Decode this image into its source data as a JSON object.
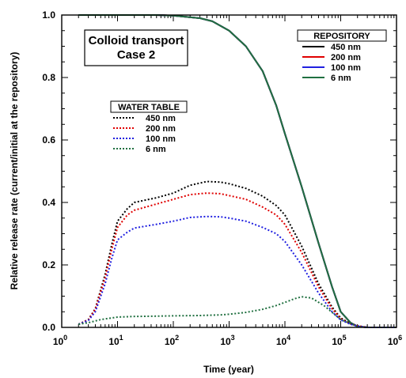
{
  "chart_data": {
    "type": "line",
    "annotation": [
      "Colloid transport",
      "Case 2"
    ],
    "xlabel": "Time (year)",
    "ylabel": "Relative release rate (current/initial at the repository)",
    "x_scale": "log",
    "xlim": [
      1,
      1000000
    ],
    "ylim": [
      0,
      1.0
    ],
    "x_tick_labels": [
      {
        "x": 1,
        "base": "10",
        "exp": "0"
      },
      {
        "x": 10,
        "base": "10",
        "exp": "1"
      },
      {
        "x": 100,
        "base": "10",
        "exp": "2"
      },
      {
        "x": 1000,
        "base": "10",
        "exp": "3"
      },
      {
        "x": 10000,
        "base": "10",
        "exp": "4"
      },
      {
        "x": 100000,
        "base": "10",
        "exp": "5"
      },
      {
        "x": 1000000,
        "base": "10",
        "exp": "6"
      }
    ],
    "y_tick_labels": [
      "0.0",
      "0.2",
      "0.4",
      "0.6",
      "0.8",
      "1.0"
    ],
    "y_ticks": [
      0,
      0.2,
      0.4,
      0.6,
      0.8,
      1.0
    ],
    "legends": [
      {
        "title": "REPOSITORY",
        "line_style": "solid",
        "entries": [
          {
            "label": "450 nm",
            "color": "#000000"
          },
          {
            "label": "200 nm",
            "color": "#e00000"
          },
          {
            "label": "100 nm",
            "color": "#2020e0"
          },
          {
            "label": "6 nm",
            "color": "#207040"
          }
        ]
      },
      {
        "title": "WATER TABLE",
        "line_style": "dotted",
        "entries": [
          {
            "label": "450 nm",
            "color": "#000000"
          },
          {
            "label": "200 nm",
            "color": "#e00000"
          },
          {
            "label": "100 nm",
            "color": "#2020e0"
          },
          {
            "label": "6 nm",
            "color": "#207040"
          }
        ]
      }
    ],
    "series": [
      {
        "group": "repository",
        "size": "450 nm",
        "color": "#000000",
        "style": "solid",
        "x": [
          2,
          5,
          10,
          50,
          100,
          300,
          500,
          1000,
          2000,
          4000,
          7000,
          10000,
          20000,
          40000,
          70000,
          100000,
          150000,
          200000,
          300000,
          1000000
        ],
        "y": [
          1.0,
          1.0,
          1.0,
          1.0,
          0.998,
          0.99,
          0.98,
          0.95,
          0.9,
          0.82,
          0.71,
          0.62,
          0.45,
          0.27,
          0.13,
          0.05,
          0.015,
          0.003,
          0.0,
          0.0
        ]
      },
      {
        "group": "repository",
        "size": "200 nm",
        "color": "#e00000",
        "style": "solid",
        "x": [
          2,
          5,
          10,
          50,
          100,
          300,
          500,
          1000,
          2000,
          4000,
          7000,
          10000,
          20000,
          40000,
          70000,
          100000,
          150000,
          200000,
          300000,
          1000000
        ],
        "y": [
          1.0,
          1.0,
          1.0,
          1.0,
          0.998,
          0.99,
          0.98,
          0.95,
          0.9,
          0.82,
          0.71,
          0.62,
          0.45,
          0.27,
          0.13,
          0.05,
          0.015,
          0.003,
          0.0,
          0.0
        ]
      },
      {
        "group": "repository",
        "size": "100 nm",
        "color": "#2020e0",
        "style": "solid",
        "x": [
          2,
          5,
          10,
          50,
          100,
          300,
          500,
          1000,
          2000,
          4000,
          7000,
          10000,
          20000,
          40000,
          70000,
          100000,
          150000,
          200000,
          300000,
          1000000
        ],
        "y": [
          1.0,
          1.0,
          1.0,
          1.0,
          0.998,
          0.99,
          0.98,
          0.95,
          0.9,
          0.82,
          0.71,
          0.62,
          0.45,
          0.27,
          0.13,
          0.05,
          0.015,
          0.003,
          0.0,
          0.0
        ]
      },
      {
        "group": "repository",
        "size": "6 nm",
        "color": "#207040",
        "style": "solid",
        "x": [
          2,
          5,
          10,
          50,
          100,
          300,
          500,
          1000,
          2000,
          4000,
          7000,
          10000,
          20000,
          40000,
          70000,
          100000,
          150000,
          200000,
          300000,
          1000000
        ],
        "y": [
          1.0,
          1.0,
          1.0,
          1.0,
          0.998,
          0.99,
          0.98,
          0.95,
          0.9,
          0.82,
          0.71,
          0.62,
          0.45,
          0.27,
          0.13,
          0.05,
          0.015,
          0.003,
          0.0,
          0.0
        ]
      },
      {
        "group": "water_table",
        "size": "450 nm",
        "color": "#000000",
        "style": "dotted",
        "x": [
          2,
          3,
          4,
          6,
          8,
          10,
          15,
          20,
          50,
          100,
          200,
          400,
          700,
          1000,
          2000,
          4000,
          7000,
          10000,
          20000,
          40000,
          70000,
          100000,
          150000,
          200000,
          300000,
          1000000
        ],
        "y": [
          0.01,
          0.025,
          0.06,
          0.17,
          0.27,
          0.34,
          0.38,
          0.4,
          0.415,
          0.43,
          0.455,
          0.467,
          0.465,
          0.46,
          0.445,
          0.42,
          0.39,
          0.36,
          0.26,
          0.14,
          0.065,
          0.03,
          0.012,
          0.005,
          0.0,
          0.0
        ]
      },
      {
        "group": "water_table",
        "size": "200 nm",
        "color": "#e00000",
        "style": "dotted",
        "x": [
          2,
          3,
          4,
          6,
          8,
          10,
          15,
          20,
          50,
          100,
          200,
          400,
          700,
          1000,
          2000,
          4000,
          7000,
          10000,
          20000,
          40000,
          70000,
          100000,
          150000,
          200000,
          300000,
          1000000
        ],
        "y": [
          0.01,
          0.024,
          0.058,
          0.16,
          0.255,
          0.32,
          0.36,
          0.375,
          0.395,
          0.41,
          0.425,
          0.43,
          0.428,
          0.422,
          0.41,
          0.385,
          0.36,
          0.33,
          0.24,
          0.13,
          0.06,
          0.028,
          0.011,
          0.005,
          0.0,
          0.0
        ]
      },
      {
        "group": "water_table",
        "size": "100 nm",
        "color": "#2020e0",
        "style": "dotted",
        "x": [
          2,
          3,
          4,
          6,
          8,
          10,
          15,
          20,
          50,
          100,
          200,
          400,
          700,
          1000,
          2000,
          4000,
          7000,
          10000,
          20000,
          40000,
          70000,
          100000,
          150000,
          200000,
          300000,
          1000000
        ],
        "y": [
          0.01,
          0.022,
          0.05,
          0.14,
          0.225,
          0.28,
          0.305,
          0.318,
          0.33,
          0.34,
          0.352,
          0.355,
          0.354,
          0.35,
          0.34,
          0.32,
          0.3,
          0.275,
          0.2,
          0.11,
          0.05,
          0.024,
          0.01,
          0.004,
          0.0,
          0.0
        ]
      },
      {
        "group": "water_table",
        "size": "6 nm",
        "color": "#207040",
        "style": "dotted",
        "x": [
          2,
          3,
          5,
          10,
          20,
          50,
          100,
          300,
          700,
          1000,
          2000,
          4000,
          7000,
          10000,
          15000,
          20000,
          30000,
          50000,
          100000,
          200000,
          300000,
          1000000
        ],
        "y": [
          0.01,
          0.015,
          0.025,
          0.033,
          0.035,
          0.036,
          0.037,
          0.038,
          0.04,
          0.042,
          0.048,
          0.058,
          0.07,
          0.08,
          0.092,
          0.098,
          0.094,
          0.07,
          0.025,
          0.003,
          0.0,
          0.0
        ]
      }
    ]
  }
}
